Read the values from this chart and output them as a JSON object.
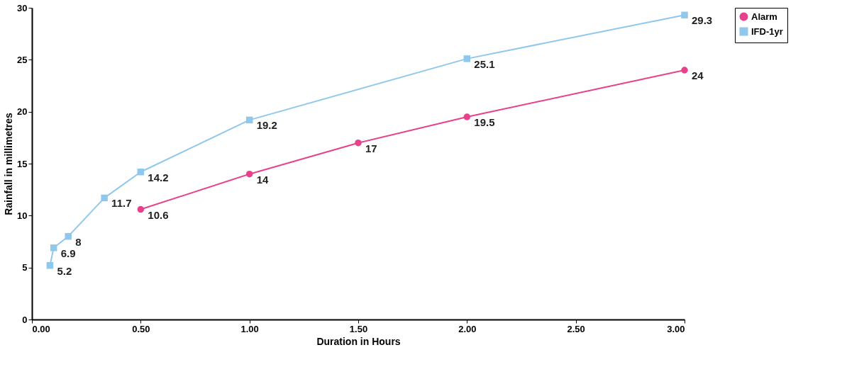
{
  "chart_data": {
    "type": "line",
    "xlabel": "Duration in Hours",
    "ylabel": "Rainfall in millimetres",
    "xlim": [
      0,
      3
    ],
    "xticks": [
      {
        "value": 0,
        "label": "0.00"
      },
      {
        "value": 0.5,
        "label": "0.50"
      },
      {
        "value": 1,
        "label": "1.00"
      },
      {
        "value": 1.5,
        "label": "1.50"
      },
      {
        "value": 2,
        "label": "2.00"
      },
      {
        "value": 2.5,
        "label": "2.50"
      },
      {
        "value": 3,
        "label": "3.00"
      }
    ],
    "ylim": [
      0,
      30
    ],
    "yticks": [
      0,
      5,
      10,
      15,
      20,
      25,
      30
    ],
    "grid": false,
    "legend": "right",
    "data_labels": true,
    "series": [
      {
        "name": "Alarm",
        "color": "#e8408a",
        "marker": "circle",
        "x": [
          0.5,
          1,
          1.5,
          2,
          3
        ],
        "values": [
          10.6,
          14,
          17,
          19.5,
          24
        ]
      },
      {
        "name": "IFD-1yr",
        "color": "#8fc8ec",
        "marker": "square",
        "x": [
          0.083,
          0.1,
          0.167,
          0.333,
          0.5,
          1,
          2,
          3
        ],
        "values": [
          5.2,
          6.9,
          8,
          11.7,
          14.2,
          19.2,
          25.1,
          29.3
        ]
      }
    ]
  }
}
